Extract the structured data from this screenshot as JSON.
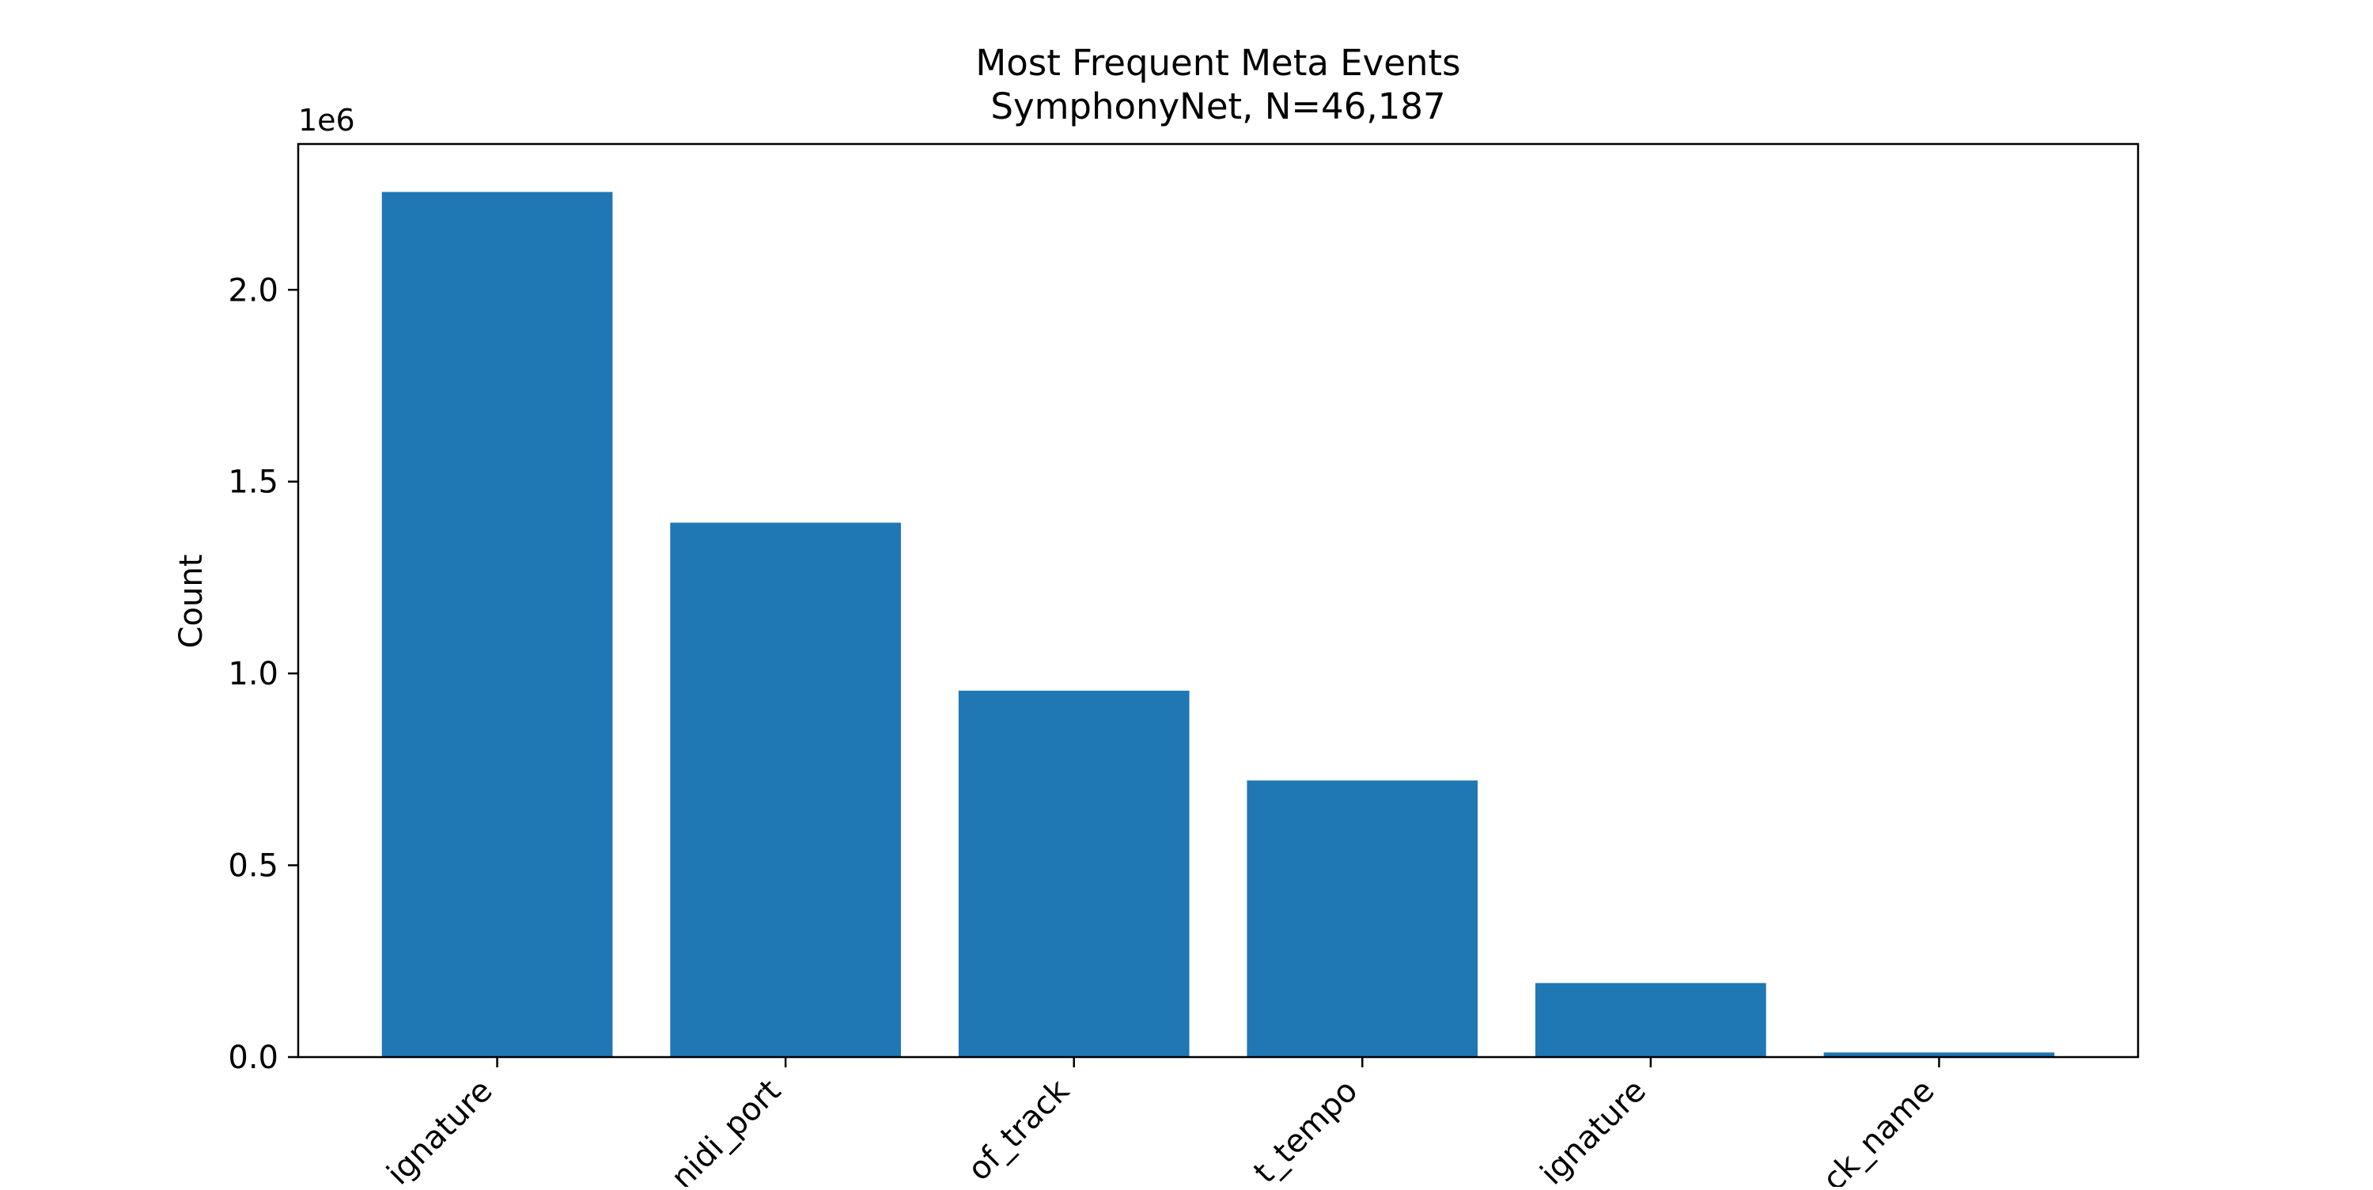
{
  "chart_data": {
    "type": "bar",
    "title": "Most Frequent Meta Events",
    "subtitle": "SymphonyNet, N=46,187",
    "xlabel": "",
    "ylabel": "Count",
    "offset_label": "1e6",
    "categories": [
      "ignature",
      "nidi_port",
      "of_track",
      "t_tempo",
      "ignature",
      "ck_name"
    ],
    "values": [
      2255000,
      1393000,
      955000,
      721000,
      193000,
      12000
    ],
    "ylim": [
      0,
      2380000
    ],
    "yticks": [
      0,
      500000,
      1000000,
      1500000,
      2000000
    ],
    "ytick_labels": [
      "0.0",
      "0.5",
      "1.0",
      "1.5",
      "2.0"
    ],
    "bar_color": "#1f77b4",
    "grid": false,
    "legend": "none"
  }
}
